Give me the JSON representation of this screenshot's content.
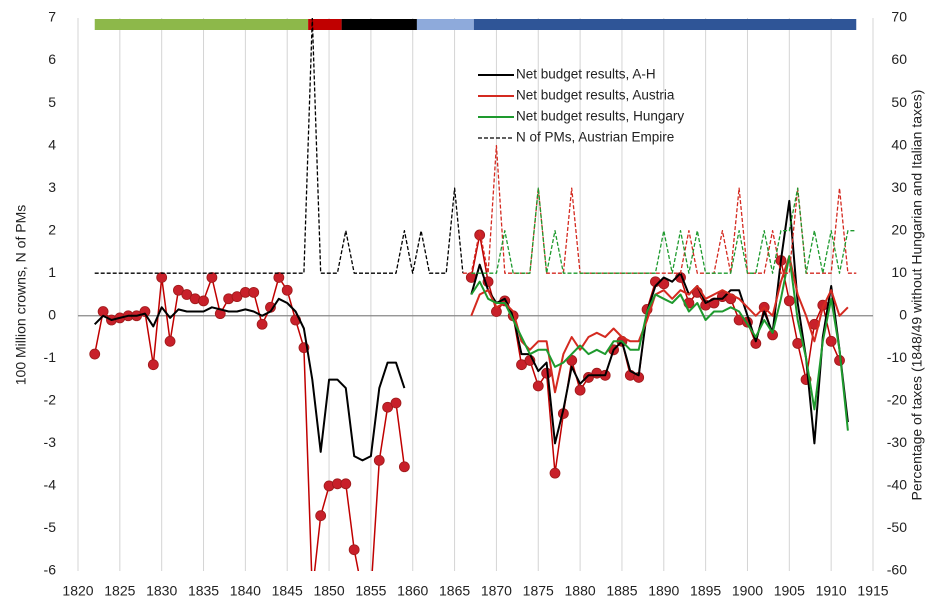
{
  "chart_data": {
    "type": "line",
    "ylabel": "100 Million crowns, N of PMs",
    "y2label": "Percentage of taxes (1848/49 without Hungarian and Italian taxes)",
    "xlim": [
      1820,
      1915
    ],
    "xticks": [
      1820,
      1825,
      1830,
      1835,
      1840,
      1845,
      1850,
      1855,
      1860,
      1865,
      1870,
      1875,
      1880,
      1885,
      1890,
      1895,
      1900,
      1905,
      1910,
      1915
    ],
    "ylim": [
      -6,
      7
    ],
    "yticks": [
      -6,
      -5,
      -4,
      -3,
      -2,
      -1,
      0,
      1,
      2,
      3,
      4,
      5,
      6,
      7
    ],
    "y2lim": [
      -60,
      70
    ],
    "y2ticks": [
      -60,
      -50,
      -40,
      -30,
      -20,
      -10,
      0,
      10,
      20,
      30,
      40,
      50,
      60,
      70
    ],
    "grid": true,
    "periods": [
      {
        "start": 1822,
        "end": 1847.5,
        "color": "#8db84a"
      },
      {
        "start": 1847.5,
        "end": 1851.5,
        "color": "#c00000"
      },
      {
        "start": 1851.5,
        "end": 1860.5,
        "color": "#000000"
      },
      {
        "start": 1860.5,
        "end": 1867.3,
        "color": "#8eaadb"
      },
      {
        "start": 1867.3,
        "end": 1913,
        "color": "#2f5597"
      }
    ],
    "x": [
      1822,
      1823,
      1824,
      1825,
      1826,
      1827,
      1828,
      1829,
      1830,
      1831,
      1832,
      1833,
      1834,
      1835,
      1836,
      1837,
      1838,
      1839,
      1840,
      1841,
      1842,
      1843,
      1844,
      1845,
      1846,
      1847,
      1848,
      1849,
      1850,
      1851,
      1852,
      1853,
      1854,
      1855,
      1856,
      1857,
      1858,
      1859,
      1860,
      1861,
      1862,
      1863,
      1864,
      1865,
      1866,
      1867,
      1868,
      1869,
      1870,
      1871,
      1872,
      1873,
      1874,
      1875,
      1876,
      1877,
      1878,
      1879,
      1880,
      1881,
      1882,
      1883,
      1884,
      1885,
      1886,
      1887,
      1888,
      1889,
      1890,
      1891,
      1892,
      1893,
      1894,
      1895,
      1896,
      1897,
      1898,
      1899,
      1900,
      1901,
      1902,
      1903,
      1904,
      1905,
      1906,
      1907,
      1908,
      1909,
      1910,
      1911,
      1912,
      1913
    ],
    "series": [
      {
        "color": "#c00000",
        "axis": "y2",
        "markers": true,
        "values": [
          -9,
          1,
          -1,
          -0.5,
          0,
          0,
          1,
          -11.5,
          9,
          -6,
          6,
          5,
          4,
          3.5,
          9,
          0.5,
          4,
          4.5,
          5.5,
          5.5,
          -2,
          2,
          9,
          6,
          -1,
          -7.5,
          -65,
          -47,
          -40,
          -39.5,
          -39.5,
          -55,
          -65,
          -65,
          -34,
          -21.5,
          -20.5,
          -35.5,
          null,
          null,
          null,
          null,
          null,
          null,
          null,
          9,
          19,
          8,
          1,
          3.5,
          0,
          -11.5,
          -10.5,
          -16.5,
          -13.5,
          -37,
          -23,
          -10.5,
          -17.5,
          -14.5,
          -13.5,
          -14,
          -8,
          -6,
          -14,
          -14.5,
          1.5,
          8,
          7.5,
          null,
          9,
          3,
          5.5,
          2.5,
          3,
          4.5,
          4,
          -1,
          -1.5,
          -6.5,
          2,
          -4.5,
          13,
          3.5,
          -6.5,
          -15,
          -2,
          2.5,
          -6,
          -10.5,
          null,
          null
        ]
      },
      {
        "name": "Net budget results, A-H",
        "color": "#000000",
        "values": [
          -0.2,
          0,
          -0.1,
          -0.05,
          0,
          0,
          0.05,
          -0.25,
          0.2,
          -0.05,
          0.15,
          0.1,
          0.1,
          0.1,
          0.2,
          0.15,
          0.1,
          0.1,
          0.15,
          0.1,
          0,
          0.1,
          0.4,
          0.3,
          0.1,
          -0.3,
          -1.5,
          -3.2,
          -1.5,
          -1.5,
          -1.7,
          -3.3,
          -3.4,
          -3.3,
          -1.7,
          -1.1,
          -1.1,
          -1.7,
          null,
          null,
          null,
          null,
          null,
          null,
          null,
          0.5,
          1.2,
          0.6,
          0.3,
          0.4,
          0,
          -0.9,
          -0.9,
          -1.3,
          -1.1,
          -3,
          -2.2,
          -1.2,
          -1.6,
          -1.4,
          -1.4,
          -1.4,
          -0.8,
          -0.6,
          -1.3,
          -1.4,
          0.1,
          0.7,
          0.9,
          0.8,
          1,
          0.5,
          0.7,
          0.3,
          0.4,
          0.4,
          0.6,
          0.6,
          0,
          -0.6,
          0.1,
          -0.4,
          1.3,
          2.7,
          0.3,
          -1,
          -3,
          -0.5,
          0.7,
          -0.8,
          -2.5,
          null
        ]
      },
      {
        "name": "Net budget results, Austria",
        "color": "#d42a20",
        "values": [
          null,
          null,
          null,
          null,
          null,
          null,
          null,
          null,
          null,
          null,
          null,
          null,
          null,
          null,
          null,
          null,
          null,
          null,
          null,
          null,
          null,
          null,
          null,
          null,
          null,
          null,
          null,
          null,
          null,
          null,
          null,
          null,
          null,
          null,
          null,
          null,
          null,
          null,
          null,
          null,
          null,
          null,
          null,
          null,
          null,
          0,
          0.5,
          0.6,
          0.2,
          0.3,
          0.1,
          -0.6,
          -0.8,
          -0.6,
          -0.6,
          -1.8,
          -0.9,
          -0.5,
          -0.8,
          -0.5,
          -0.4,
          -0.5,
          -0.3,
          -0.5,
          -0.6,
          -0.6,
          -0.1,
          0.5,
          0.6,
          0.4,
          0.6,
          0.5,
          0.7,
          0.4,
          0.5,
          0.6,
          0.5,
          0.4,
          0.2,
          0,
          0.2,
          0,
          0.8,
          1.4,
          0.5,
          0,
          -0.6,
          0.2,
          0.6,
          0,
          0.2,
          null
        ]
      },
      {
        "name": "Net budget results, Hungary",
        "color": "#1e9a2e",
        "values": [
          null,
          null,
          null,
          null,
          null,
          null,
          null,
          null,
          null,
          null,
          null,
          null,
          null,
          null,
          null,
          null,
          null,
          null,
          null,
          null,
          null,
          null,
          null,
          null,
          null,
          null,
          null,
          null,
          null,
          null,
          null,
          null,
          null,
          null,
          null,
          null,
          null,
          null,
          null,
          null,
          null,
          null,
          null,
          null,
          null,
          0.5,
          0.8,
          0.4,
          0.3,
          0.3,
          -0.1,
          -0.5,
          -0.9,
          -0.8,
          -0.8,
          -1.2,
          -1.1,
          -0.9,
          -0.7,
          -0.9,
          -0.8,
          -0.9,
          -0.6,
          -0.6,
          -0.8,
          -0.8,
          0.1,
          0.5,
          0.4,
          0.3,
          0.5,
          0.1,
          0.3,
          -0.1,
          0.1,
          0.1,
          0.2,
          0.1,
          -0.2,
          -0.5,
          -0.1,
          -0.4,
          0.4,
          1.4,
          -0.1,
          -1,
          -2.2,
          -0.6,
          0.4,
          -0.8,
          -2.7,
          null
        ]
      },
      {
        "name": "N of PMs, Austrian Empire",
        "color": "#000000",
        "dash": true,
        "values": [
          1,
          1,
          1,
          1,
          1,
          1,
          1,
          1,
          1,
          1,
          1,
          1,
          1,
          1,
          1,
          1,
          1,
          1,
          1,
          1,
          1,
          1,
          1,
          1,
          1,
          1,
          7,
          1,
          1,
          1,
          2,
          1,
          1,
          1,
          1,
          1,
          1,
          2,
          1,
          2,
          1,
          1,
          1,
          3,
          1,
          null,
          null,
          null,
          null,
          null,
          null,
          null,
          null,
          null,
          null,
          null,
          null,
          null,
          null,
          null,
          null,
          null,
          null,
          null,
          null,
          null,
          null,
          null,
          null,
          null,
          null,
          null,
          null,
          null,
          null,
          null,
          null,
          null,
          null,
          null,
          null,
          null,
          null,
          null,
          null,
          null,
          null,
          null,
          null,
          null,
          null,
          null
        ]
      },
      {
        "color": "#d42a20",
        "dash": true,
        "values": [
          null,
          null,
          null,
          null,
          null,
          null,
          null,
          null,
          null,
          null,
          null,
          null,
          null,
          null,
          null,
          null,
          null,
          null,
          null,
          null,
          null,
          null,
          null,
          null,
          null,
          null,
          null,
          null,
          null,
          null,
          null,
          null,
          null,
          null,
          null,
          null,
          null,
          null,
          null,
          null,
          null,
          null,
          null,
          null,
          1,
          1,
          2,
          1,
          4,
          1,
          1,
          1,
          1,
          3,
          1,
          1,
          1,
          3,
          1,
          1,
          1,
          1,
          1,
          1,
          1,
          1,
          1,
          1,
          1,
          1,
          1,
          2,
          1,
          1,
          1,
          2,
          1,
          3,
          1,
          1,
          1,
          2,
          1,
          1,
          3,
          1,
          1,
          1,
          1,
          3,
          1,
          1
        ]
      },
      {
        "color": "#1e9a2e",
        "dash": true,
        "values": [
          null,
          null,
          null,
          null,
          null,
          null,
          null,
          null,
          null,
          null,
          null,
          null,
          null,
          null,
          null,
          null,
          null,
          null,
          null,
          null,
          null,
          null,
          null,
          null,
          null,
          null,
          null,
          null,
          null,
          null,
          null,
          null,
          null,
          null,
          null,
          null,
          null,
          null,
          null,
          null,
          null,
          null,
          null,
          null,
          null,
          1,
          1,
          1,
          1,
          2,
          1,
          1,
          1,
          3,
          1,
          2,
          1,
          1,
          1,
          1,
          1,
          1,
          1,
          1,
          1,
          1,
          1,
          1,
          2,
          1,
          2,
          1,
          2,
          1,
          1,
          1,
          1,
          2,
          1,
          1,
          2,
          1,
          2,
          2,
          3,
          1,
          2,
          1,
          2,
          1,
          2,
          2
        ]
      }
    ]
  }
}
